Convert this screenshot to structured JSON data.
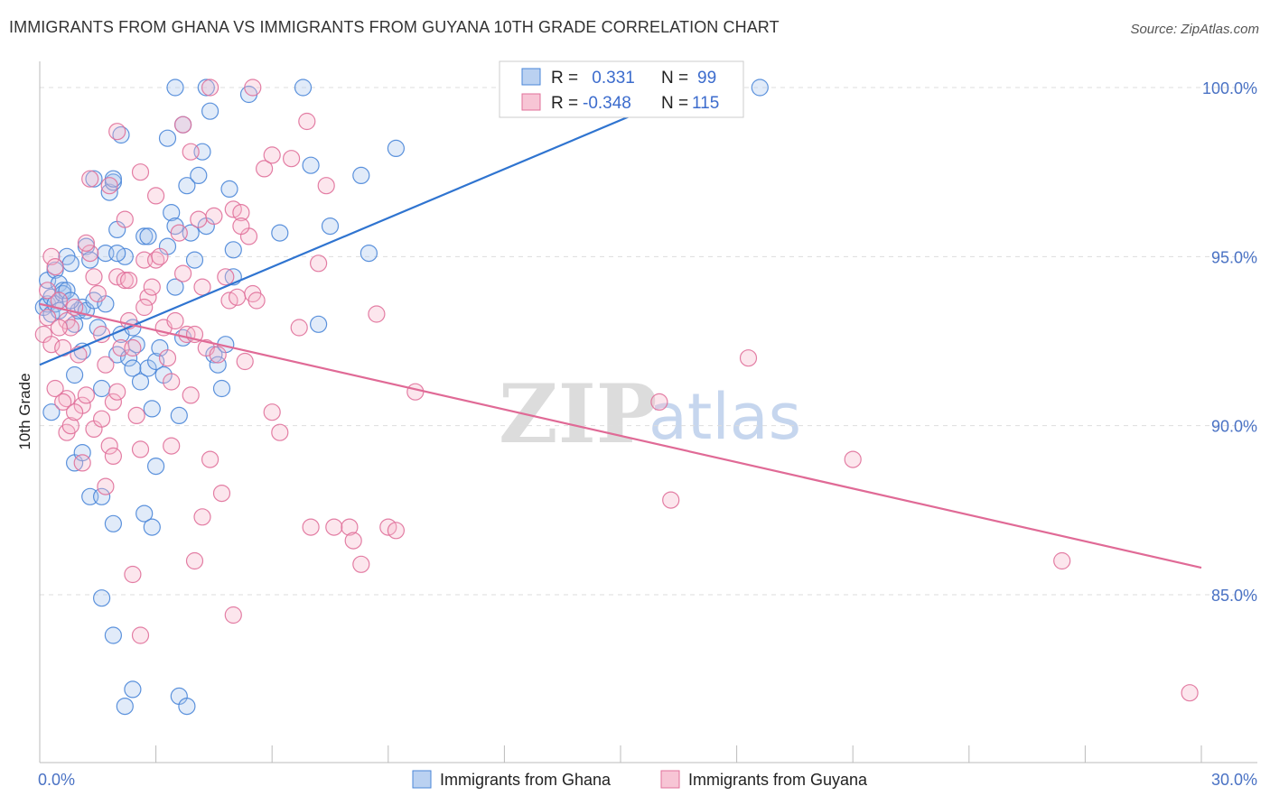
{
  "title": "IMMIGRANTS FROM GHANA VS IMMIGRANTS FROM GUYANA 10TH GRADE CORRELATION CHART",
  "source": "Source: ZipAtlas.com",
  "watermark": {
    "part1": "ZIP",
    "part2": "atlas"
  },
  "colors": {
    "ghana": "#4a86d8",
    "ghana_fill": "#a9c6ee",
    "guyana": "#e0709a",
    "guyana_fill": "#f5b6cb"
  },
  "legend": {
    "rows": [
      {
        "r_label": "R =",
        "r_value": " 0.331",
        "n_label": "N =",
        "n_value": "99"
      },
      {
        "r_label": "R =",
        "r_value": "-0.348",
        "n_label": "N =",
        "n_value": "115"
      }
    ]
  },
  "chart_data": {
    "type": "scatter",
    "title": "IMMIGRANTS FROM GHANA VS IMMIGRANTS FROM GUYANA 10TH GRADE CORRELATION CHART",
    "xlabel": "",
    "ylabel": "10th Grade",
    "xlim": [
      0,
      30
    ],
    "ylim": [
      80.5,
      100.8
    ],
    "x_tick_labels": [
      "0.0%",
      "30.0%"
    ],
    "y_ticks": [
      85,
      90,
      95,
      100
    ],
    "y_tick_labels": [
      "85.0%",
      "90.0%",
      "95.0%",
      "100.0%"
    ],
    "series": [
      {
        "name": "Immigrants from Ghana",
        "r": 0.331,
        "n": 99,
        "trend": {
          "x": [
            0.0,
            17.0
          ],
          "y": [
            91.8,
            100.0
          ]
        },
        "points": [
          [
            0.1,
            93.5
          ],
          [
            0.2,
            93.6
          ],
          [
            0.2,
            94.3
          ],
          [
            0.3,
            93.8
          ],
          [
            0.3,
            93.3
          ],
          [
            0.4,
            94.6
          ],
          [
            0.4,
            93.6
          ],
          [
            0.5,
            94.2
          ],
          [
            0.5,
            93.4
          ],
          [
            0.6,
            94.0
          ],
          [
            0.6,
            93.9
          ],
          [
            0.7,
            95.0
          ],
          [
            0.7,
            94.0
          ],
          [
            0.8,
            94.8
          ],
          [
            0.9,
            93.0
          ],
          [
            0.9,
            91.5
          ],
          [
            1.0,
            93.4
          ],
          [
            1.1,
            92.2
          ],
          [
            1.1,
            93.5
          ],
          [
            1.2,
            95.3
          ],
          [
            1.2,
            93.4
          ],
          [
            1.3,
            94.9
          ],
          [
            1.4,
            93.7
          ],
          [
            1.4,
            97.3
          ],
          [
            1.5,
            92.9
          ],
          [
            1.6,
            91.1
          ],
          [
            1.7,
            95.1
          ],
          [
            1.7,
            93.6
          ],
          [
            1.8,
            96.9
          ],
          [
            1.9,
            97.2
          ],
          [
            2.0,
            92.1
          ],
          [
            2.0,
            95.8
          ],
          [
            2.1,
            92.7
          ],
          [
            2.1,
            98.6
          ],
          [
            2.2,
            95.0
          ],
          [
            2.3,
            92.0
          ],
          [
            2.4,
            92.9
          ],
          [
            2.4,
            91.7
          ],
          [
            2.5,
            92.4
          ],
          [
            2.6,
            91.3
          ],
          [
            2.7,
            95.6
          ],
          [
            2.8,
            95.6
          ],
          [
            2.8,
            91.7
          ],
          [
            2.9,
            90.5
          ],
          [
            3.0,
            91.9
          ],
          [
            3.0,
            88.8
          ],
          [
            3.1,
            92.3
          ],
          [
            3.2,
            91.5
          ],
          [
            3.3,
            95.3
          ],
          [
            3.4,
            96.3
          ],
          [
            3.5,
            95.9
          ],
          [
            3.5,
            94.1
          ],
          [
            3.6,
            90.3
          ],
          [
            3.7,
            92.6
          ],
          [
            3.8,
            97.1
          ],
          [
            3.9,
            95.7
          ],
          [
            4.0,
            94.9
          ],
          [
            4.1,
            97.4
          ],
          [
            4.2,
            98.1
          ],
          [
            4.3,
            95.9
          ],
          [
            4.4,
            99.3
          ],
          [
            4.5,
            92.1
          ],
          [
            4.6,
            91.8
          ],
          [
            4.7,
            91.1
          ],
          [
            4.8,
            92.4
          ],
          [
            4.9,
            97.0
          ],
          [
            5.0,
            94.4
          ],
          [
            5.0,
            95.2
          ],
          [
            5.4,
            99.8
          ],
          [
            6.2,
            95.7
          ],
          [
            6.8,
            100.0
          ],
          [
            7.0,
            97.7
          ],
          [
            7.2,
            93.0
          ],
          [
            7.5,
            95.9
          ],
          [
            8.3,
            97.4
          ],
          [
            8.5,
            95.1
          ],
          [
            9.2,
            98.2
          ],
          [
            0.3,
            90.4
          ],
          [
            0.9,
            88.9
          ],
          [
            1.1,
            89.2
          ],
          [
            1.3,
            87.9
          ],
          [
            1.6,
            87.9
          ],
          [
            1.9,
            87.1
          ],
          [
            2.7,
            87.4
          ],
          [
            2.9,
            87.0
          ],
          [
            1.6,
            84.9
          ],
          [
            1.9,
            83.8
          ],
          [
            2.4,
            82.2
          ],
          [
            2.2,
            81.7
          ],
          [
            3.6,
            82.0
          ],
          [
            3.8,
            81.7
          ],
          [
            3.5,
            100.0
          ],
          [
            4.3,
            100.0
          ],
          [
            3.7,
            98.9
          ],
          [
            3.3,
            98.5
          ],
          [
            1.9,
            97.3
          ],
          [
            2.0,
            95.1
          ],
          [
            0.8,
            93.7
          ],
          [
            18.6,
            100.0
          ]
        ]
      },
      {
        "name": "Immigrants from Guyana",
        "r": -0.348,
        "n": 115,
        "trend": {
          "x": [
            0.0,
            30.0
          ],
          "y": [
            93.6,
            85.8
          ]
        },
        "points": [
          [
            0.1,
            92.7
          ],
          [
            0.2,
            93.2
          ],
          [
            0.2,
            94.0
          ],
          [
            0.3,
            92.4
          ],
          [
            0.3,
            95.0
          ],
          [
            0.4,
            94.7
          ],
          [
            0.5,
            93.7
          ],
          [
            0.6,
            92.3
          ],
          [
            0.7,
            93.1
          ],
          [
            0.7,
            90.8
          ],
          [
            0.8,
            92.9
          ],
          [
            0.9,
            93.5
          ],
          [
            1.0,
            92.1
          ],
          [
            1.1,
            90.6
          ],
          [
            1.2,
            90.9
          ],
          [
            1.3,
            95.1
          ],
          [
            1.4,
            94.4
          ],
          [
            1.5,
            93.9
          ],
          [
            1.6,
            92.7
          ],
          [
            1.7,
            91.8
          ],
          [
            1.8,
            89.4
          ],
          [
            1.9,
            90.7
          ],
          [
            2.0,
            94.4
          ],
          [
            2.1,
            92.3
          ],
          [
            2.2,
            94.3
          ],
          [
            2.3,
            93.1
          ],
          [
            2.4,
            92.3
          ],
          [
            2.5,
            90.3
          ],
          [
            2.6,
            89.3
          ],
          [
            2.7,
            94.9
          ],
          [
            2.8,
            93.8
          ],
          [
            2.9,
            94.1
          ],
          [
            3.0,
            94.9
          ],
          [
            3.1,
            95.0
          ],
          [
            3.2,
            92.9
          ],
          [
            3.3,
            92.0
          ],
          [
            3.4,
            91.3
          ],
          [
            3.5,
            93.1
          ],
          [
            3.6,
            95.7
          ],
          [
            3.7,
            94.5
          ],
          [
            3.8,
            92.7
          ],
          [
            3.9,
            90.9
          ],
          [
            4.0,
            92.7
          ],
          [
            4.1,
            96.1
          ],
          [
            4.2,
            94.1
          ],
          [
            4.3,
            92.3
          ],
          [
            4.4,
            89.0
          ],
          [
            4.5,
            96.2
          ],
          [
            4.6,
            92.1
          ],
          [
            4.7,
            88.0
          ],
          [
            4.8,
            94.4
          ],
          [
            4.9,
            93.7
          ],
          [
            5.0,
            96.4
          ],
          [
            5.1,
            93.8
          ],
          [
            5.2,
            96.3
          ],
          [
            5.3,
            91.9
          ],
          [
            5.4,
            95.6
          ],
          [
            5.5,
            93.9
          ],
          [
            5.6,
            93.7
          ],
          [
            5.8,
            97.6
          ],
          [
            6.0,
            90.4
          ],
          [
            6.2,
            89.8
          ],
          [
            6.5,
            97.9
          ],
          [
            6.7,
            92.9
          ],
          [
            7.0,
            87.0
          ],
          [
            7.2,
            94.8
          ],
          [
            7.4,
            97.1
          ],
          [
            7.6,
            87.0
          ],
          [
            8.0,
            87.0
          ],
          [
            8.1,
            86.6
          ],
          [
            8.3,
            85.9
          ],
          [
            8.7,
            93.3
          ],
          [
            9.0,
            87.0
          ],
          [
            9.2,
            86.9
          ],
          [
            0.4,
            91.1
          ],
          [
            0.6,
            90.7
          ],
          [
            0.7,
            89.8
          ],
          [
            0.8,
            90.0
          ],
          [
            0.9,
            90.4
          ],
          [
            1.1,
            88.9
          ],
          [
            1.4,
            89.9
          ],
          [
            1.6,
            90.2
          ],
          [
            1.7,
            88.2
          ],
          [
            1.9,
            89.1
          ],
          [
            2.0,
            91.0
          ],
          [
            2.4,
            85.6
          ],
          [
            2.6,
            83.8
          ],
          [
            3.4,
            89.4
          ],
          [
            4.0,
            86.0
          ],
          [
            4.2,
            87.3
          ],
          [
            5.0,
            84.4
          ],
          [
            6.0,
            98.0
          ],
          [
            6.9,
            99.0
          ],
          [
            4.4,
            100.0
          ],
          [
            5.5,
            100.0
          ],
          [
            3.7,
            98.9
          ],
          [
            2.0,
            98.7
          ],
          [
            2.6,
            97.5
          ],
          [
            3.0,
            96.8
          ],
          [
            1.3,
            97.3
          ],
          [
            2.2,
            96.1
          ],
          [
            1.8,
            97.1
          ],
          [
            2.3,
            94.3
          ],
          [
            3.9,
            98.1
          ],
          [
            5.2,
            95.9
          ],
          [
            16.0,
            90.7
          ],
          [
            16.3,
            87.8
          ],
          [
            18.3,
            92.0
          ],
          [
            21.0,
            89.0
          ],
          [
            26.4,
            86.0
          ],
          [
            29.7,
            82.1
          ],
          [
            9.7,
            91.0
          ],
          [
            1.2,
            95.4
          ],
          [
            0.5,
            92.9
          ],
          [
            2.7,
            93.5
          ]
        ]
      }
    ]
  },
  "bottom_legend": {
    "items": [
      {
        "label": "Immigrants from Ghana"
      },
      {
        "label": "Immigrants from Guyana"
      }
    ]
  }
}
